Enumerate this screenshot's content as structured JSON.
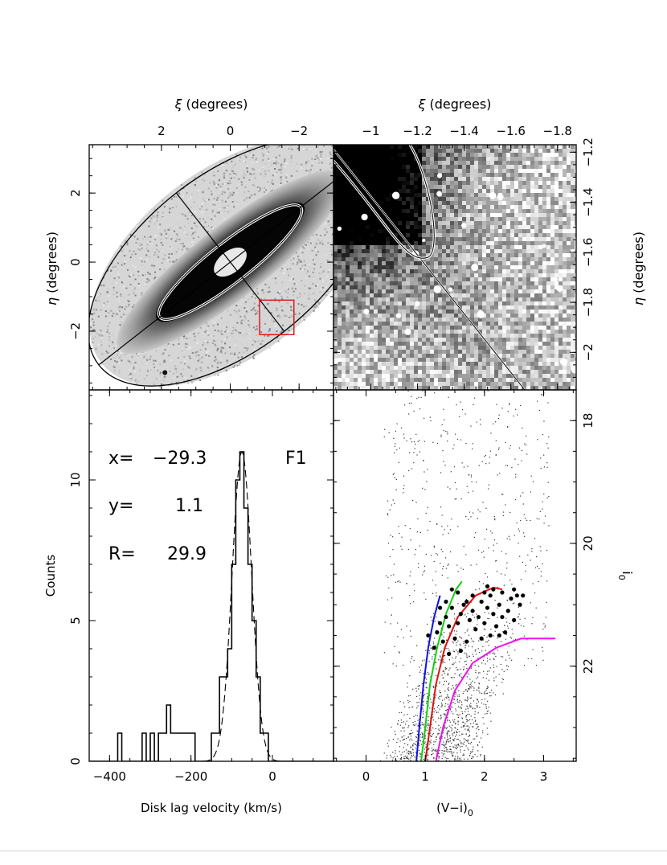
{
  "chart_data": [
    {
      "panel": "top-left",
      "type": "heatmap",
      "description_free": true,
      "xlabel_symbol": "ξ",
      "xlabel": "(degrees)",
      "ylabel_symbol": "η",
      "ylabel": "(degrees)",
      "xlim": [
        4.1,
        -3.0
      ],
      "ylim": [
        -3.7,
        3.4
      ],
      "xticks": [
        2,
        0,
        -2
      ],
      "xtick_labels": [
        "2",
        "0",
        "−2"
      ],
      "yticks": [
        2,
        0,
        -2
      ],
      "ytick_labels": [
        "2",
        "0",
        "−2"
      ],
      "outer_ellipse": {
        "cx": 0,
        "cy": 0,
        "a": 4.85,
        "b": 2.55,
        "pa_deg": 38
      },
      "inner_ellipse": {
        "cx": 0,
        "cy": 0,
        "a": 2.6,
        "b": 0.58,
        "pa_deg": 38
      },
      "field_box": {
        "x_center": -1.35,
        "y_center": -1.6,
        "half_width": 0.5,
        "half_height": 0.5,
        "color": "#e01010"
      }
    },
    {
      "panel": "top-right",
      "type": "heatmap",
      "xlabel_symbol": "ξ",
      "xlabel": "(degrees)",
      "ylabel_symbol": "η",
      "ylabel": "(degrees)",
      "xlim": [
        -0.84,
        -1.88
      ],
      "ylim": [
        -2.15,
        -1.17
      ],
      "xticks": [
        -1,
        -1.2,
        -1.4,
        -1.6,
        -1.8
      ],
      "xtick_labels": [
        "−1",
        "−1.2",
        "−1.4",
        "−1.6",
        "−1.8"
      ],
      "yticks": [
        -1.2,
        -1.4,
        -1.6,
        -1.8,
        -2
      ],
      "ytick_labels": [
        "−1.2",
        "−1.4",
        "−1.6",
        "−1.8",
        "−2"
      ]
    },
    {
      "panel": "bottom-left",
      "type": "bar",
      "style": "histogram-step",
      "xlabel": "Disk lag velocity (km/s)",
      "ylabel": "Counts",
      "xlim": [
        -450,
        150
      ],
      "ylim": [
        0,
        13.2
      ],
      "xticks": [
        -400,
        -200,
        0
      ],
      "xtick_labels": [
        "−400",
        "−200",
        "0"
      ],
      "yticks": [
        0,
        5,
        10
      ],
      "ytick_labels": [
        "0",
        "5",
        "10"
      ],
      "bin_width": 10,
      "bin_left_edges": [
        -380,
        -370,
        -360,
        -350,
        -340,
        -330,
        -320,
        -310,
        -300,
        -290,
        -280,
        -270,
        -260,
        -250,
        -240,
        -230,
        -220,
        -210,
        -200,
        -190,
        -180,
        -170,
        -160,
        -150,
        -140,
        -130,
        -120,
        -110,
        -100,
        -90,
        -80,
        -70,
        -60,
        -50,
        -40,
        -30,
        -20,
        -10,
        0
      ],
      "counts": [
        1,
        0,
        0,
        0,
        0,
        0,
        1,
        0,
        1,
        0,
        1,
        1,
        2,
        1,
        1,
        1,
        1,
        1,
        1,
        0,
        0,
        0,
        0,
        1,
        1,
        3,
        3,
        4,
        7,
        10,
        11,
        9,
        7,
        5,
        3,
        1,
        1,
        0,
        0
      ],
      "fit_curve": {
        "type": "gaussian",
        "mean": -75,
        "sigma": 24,
        "amplitude": 11
      },
      "annotations": {
        "x_label": "x=",
        "x_value": "−29.3",
        "field": "F1",
        "y_label": "y=",
        "y_value": "1.1",
        "r_label": "R=",
        "r_value": "29.9"
      }
    },
    {
      "panel": "bottom-right",
      "type": "scatter",
      "xlabel": "(V−i)",
      "xlabel_sub": "0",
      "ylabel": "i",
      "ylabel_sub": "0",
      "xlim": [
        -0.55,
        3.55
      ],
      "ylim": [
        23.55,
        17.5
      ],
      "xticks": [
        0,
        1,
        2,
        3
      ],
      "xtick_labels": [
        "0",
        "1",
        "2",
        "3"
      ],
      "yticks": [
        18,
        20,
        22
      ],
      "ytick_labels": [
        "18",
        "20",
        "22"
      ],
      "rgb_points": [
        [
          1.05,
          21.5
        ],
        [
          1.2,
          21.45
        ],
        [
          1.25,
          21.3
        ],
        [
          1.35,
          21.2
        ],
        [
          1.4,
          21.35
        ],
        [
          1.3,
          21.6
        ],
        [
          1.45,
          21.05
        ],
        [
          1.5,
          21.55
        ],
        [
          1.55,
          21.3
        ],
        [
          1.6,
          21.15
        ],
        [
          1.65,
          21.0
        ],
        [
          1.7,
          20.95
        ],
        [
          1.75,
          21.25
        ],
        [
          1.8,
          21.1
        ],
        [
          1.85,
          21.4
        ],
        [
          1.9,
          21.2
        ],
        [
          1.95,
          20.95
        ],
        [
          2.0,
          21.3
        ],
        [
          2.05,
          21.05
        ],
        [
          2.1,
          20.85
        ],
        [
          2.15,
          21.15
        ],
        [
          2.2,
          21.35
        ],
        [
          2.25,
          21.0
        ],
        [
          2.3,
          20.8
        ],
        [
          2.35,
          21.45
        ],
        [
          2.4,
          21.1
        ],
        [
          2.45,
          20.9
        ],
        [
          2.5,
          21.25
        ],
        [
          2.55,
          20.85
        ],
        [
          2.6,
          21.0
        ],
        [
          1.6,
          21.75
        ],
        [
          1.7,
          21.6
        ],
        [
          1.55,
          20.8
        ],
        [
          1.45,
          20.75
        ],
        [
          1.95,
          21.55
        ],
        [
          2.1,
          21.5
        ],
        [
          2.3,
          21.2
        ],
        [
          1.8,
          20.85
        ],
        [
          2.05,
          20.7
        ],
        [
          2.15,
          20.75
        ],
        [
          1.35,
          20.95
        ],
        [
          1.25,
          21.05
        ],
        [
          1.4,
          21.8
        ],
        [
          2.25,
          21.5
        ],
        [
          1.15,
          21.7
        ],
        [
          2.0,
          20.8
        ],
        [
          2.5,
          20.75
        ],
        [
          2.65,
          20.85
        ]
      ],
      "isochrones": [
        {
          "color": "#1010e0",
          "points": [
            [
              0.85,
              23.55
            ],
            [
              0.9,
              23.0
            ],
            [
              0.97,
              22.3
            ],
            [
              1.05,
              21.7
            ],
            [
              1.15,
              21.2
            ],
            [
              1.25,
              20.85
            ]
          ]
        },
        {
          "color": "#10d010",
          "points": [
            [
              0.93,
              23.55
            ],
            [
              1.0,
              23.0
            ],
            [
              1.08,
              22.3
            ],
            [
              1.2,
              21.7
            ],
            [
              1.35,
              21.15
            ],
            [
              1.52,
              20.75
            ],
            [
              1.62,
              20.62
            ]
          ]
        },
        {
          "color": "#e01010",
          "points": [
            [
              1.0,
              23.55
            ],
            [
              1.08,
              23.0
            ],
            [
              1.18,
              22.3
            ],
            [
              1.33,
              21.7
            ],
            [
              1.55,
              21.2
            ],
            [
              1.85,
              20.85
            ],
            [
              2.15,
              20.72
            ],
            [
              2.3,
              20.75
            ]
          ]
        },
        {
          "color": "#f010f0",
          "points": [
            [
              1.18,
              23.55
            ],
            [
              1.3,
              23.0
            ],
            [
              1.5,
              22.4
            ],
            [
              1.8,
              21.95
            ],
            [
              2.2,
              21.7
            ],
            [
              2.62,
              21.55
            ],
            [
              3.2,
              21.55
            ]
          ]
        }
      ]
    }
  ]
}
